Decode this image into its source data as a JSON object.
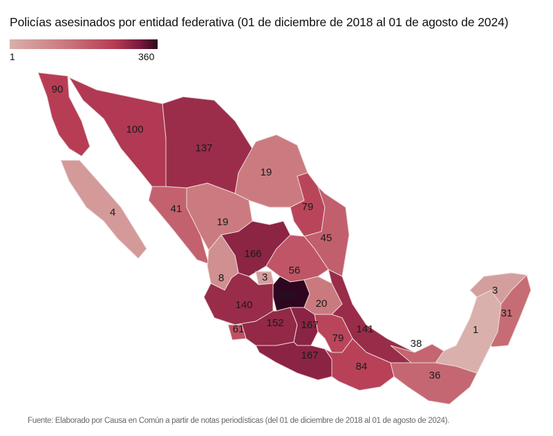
{
  "title": "Policías asesinados por entidad federativa (01 de diciembre de 2018 al 01 de agosto de 2024)",
  "legend": {
    "min_label": "1",
    "max_label": "360",
    "min": 1,
    "max": 360,
    "colors": [
      "#d9b0ab",
      "#c9757b",
      "#b73d55",
      "#7a1a3d",
      "#2e0620"
    ]
  },
  "chart_data": {
    "type": "choropleth",
    "values": [
      "90",
      "4",
      "100",
      "137",
      "19",
      "41",
      "19",
      "79",
      "45",
      "166",
      "56",
      "8",
      "3",
      "140",
      "360",
      "20",
      "141",
      "61",
      "152",
      "167",
      "79",
      "167",
      "84",
      "38",
      "36",
      "1",
      "3",
      "31"
    ]
  },
  "source": "Fuente: Elaborado por Causa en Común a partir de notas periodísticas (del 01 de diciembre de 2018 al 01 de agosto de 2024)."
}
